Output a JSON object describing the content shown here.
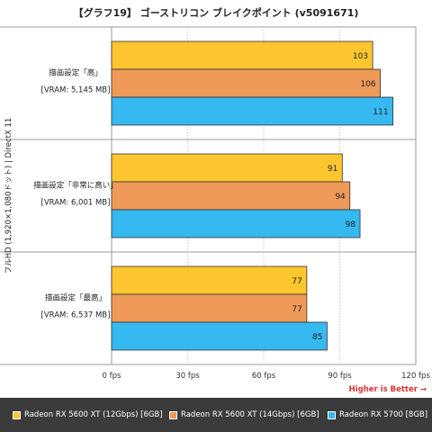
{
  "chart_data": {
    "type": "bar",
    "orientation": "horizontal",
    "title": "【グラフ19】 ゴーストリコン ブレイクポイント (v5091671)",
    "ylabel": "フルHD (1,920×1,080ドット) | DirectX 11",
    "xlabel": "",
    "xlim": [
      0,
      120
    ],
    "x_ticks": [
      "0 fps",
      "30 fps",
      "60 fps",
      "90 fps",
      "120 fps"
    ],
    "x_tick_values": [
      0,
      30,
      60,
      90,
      120
    ],
    "grid": true,
    "legend_position": "bottom",
    "annotation": "Higher is Better →",
    "groups": [
      {
        "label": "描画設定「高」",
        "sublabel": "[VRAM: 5,145 MB]"
      },
      {
        "label": "描画設定「非常に高い」",
        "sublabel": "[VRAM: 6,001 MB]"
      },
      {
        "label": "描画設定「最高」",
        "sublabel": "[VRAM: 6,537 MB]"
      }
    ],
    "series": [
      {
        "name": "Radeon RX 5600 XT (12Gbps) [6GB]",
        "color": "#fdc52f",
        "values": [
          103,
          91,
          77
        ]
      },
      {
        "name": "Radeon RX 5600 XT (14Gbps) [6GB]",
        "color": "#ef9a58",
        "values": [
          106,
          94,
          77
        ]
      },
      {
        "name": "Radeon RX 5700 [8GB]",
        "color": "#36b8f0",
        "values": [
          111,
          98,
          85
        ]
      }
    ]
  }
}
